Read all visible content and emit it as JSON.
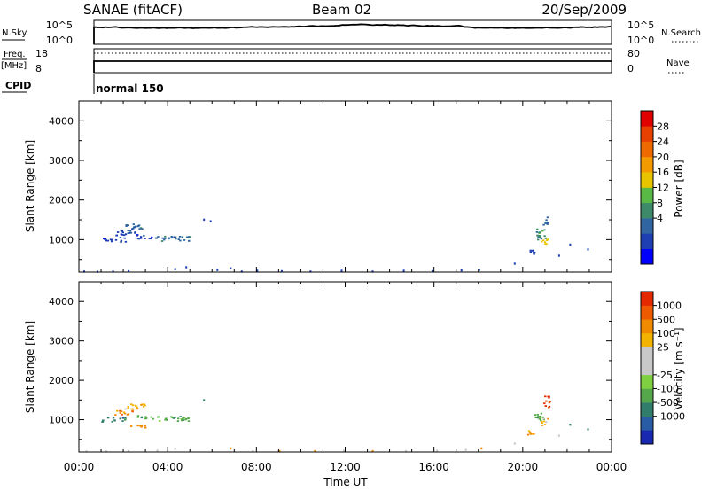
{
  "header": {
    "site": "SANAE (fitACF)",
    "beam": "Beam 02",
    "date": "20/Sep/2009"
  },
  "strips": {
    "nsky": {
      "label": "N.Sky",
      "ticks": [
        "10^5",
        "10^0"
      ]
    },
    "nsearch": {
      "label": "N.Search",
      "ticks": [
        "10^5",
        "10^0"
      ]
    },
    "freq": {
      "label_top": "Freq.",
      "label_unit": "[MHz]",
      "ticks": [
        "18",
        "8"
      ]
    },
    "nave": {
      "label": "Nave",
      "ticks": [
        "80",
        "0"
      ]
    },
    "cpid": {
      "label": "CPID",
      "mode": "normal 150"
    }
  },
  "chart_data": [
    {
      "type": "scatter",
      "title": "Power",
      "xlabel": "Time UT",
      "ylabel": "Slant Range [km]",
      "xlim": [
        0,
        24
      ],
      "ylim": [
        180,
        4500
      ],
      "x_ticks": [
        "00:00",
        "04:00",
        "08:00",
        "12:00",
        "16:00",
        "20:00",
        "00:00"
      ],
      "y_ticks": [
        "1000",
        "2000",
        "3000",
        "4000"
      ],
      "colorbar": {
        "label": "Power [dB]",
        "ticks": [
          "28",
          "24",
          "20",
          "16",
          "12",
          "8",
          "4"
        ],
        "colors": [
          "#0000ff",
          "#1e3fb4",
          "#2f65a0",
          "#3d8a6a",
          "#58b944",
          "#e8c400",
          "#f29a00",
          "#ee6a00",
          "#e84000",
          "#e00000"
        ]
      },
      "clusters": [
        {
          "x0": 1.0,
          "x1": 2.1,
          "y0": 960,
          "y1": 1080,
          "level": 1
        },
        {
          "x0": 1.5,
          "x1": 2.6,
          "y0": 1120,
          "y1": 1260,
          "level": 1
        },
        {
          "x0": 2.0,
          "x1": 3.0,
          "y0": 1280,
          "y1": 1420,
          "level": 2
        },
        {
          "x0": 2.6,
          "x1": 3.6,
          "y0": 1040,
          "y1": 1120,
          "level": 1
        },
        {
          "x0": 3.4,
          "x1": 5.0,
          "y0": 980,
          "y1": 1100,
          "level": 2
        },
        {
          "x0": 20.3,
          "x1": 20.5,
          "y0": 640,
          "y1": 760,
          "level": 1
        },
        {
          "x0": 20.5,
          "x1": 21.0,
          "y0": 1000,
          "y1": 1300,
          "level": 3
        },
        {
          "x0": 20.8,
          "x1": 21.1,
          "y0": 850,
          "y1": 1050,
          "level": 5
        },
        {
          "x0": 20.9,
          "x1": 21.1,
          "y0": 1350,
          "y1": 1600,
          "level": 2
        }
      ],
      "sparse_points": [
        {
          "x": 0.2,
          "y": 220,
          "level": 1
        },
        {
          "x": 0.8,
          "y": 215,
          "level": 1
        },
        {
          "x": 1.5,
          "y": 220,
          "level": 1
        },
        {
          "x": 2.2,
          "y": 230,
          "level": 1
        },
        {
          "x": 4.3,
          "y": 280,
          "level": 1
        },
        {
          "x": 4.8,
          "y": 330,
          "level": 1
        },
        {
          "x": 5.6,
          "y": 1530,
          "level": 1
        },
        {
          "x": 5.9,
          "y": 1490,
          "level": 1
        },
        {
          "x": 6.2,
          "y": 260,
          "level": 1
        },
        {
          "x": 6.8,
          "y": 300,
          "level": 1
        },
        {
          "x": 7.3,
          "y": 220,
          "level": 1
        },
        {
          "x": 8.0,
          "y": 240,
          "level": 1
        },
        {
          "x": 9.1,
          "y": 230,
          "level": 1
        },
        {
          "x": 10.4,
          "y": 220,
          "level": 1
        },
        {
          "x": 11.8,
          "y": 240,
          "level": 1
        },
        {
          "x": 13.2,
          "y": 220,
          "level": 1
        },
        {
          "x": 14.6,
          "y": 240,
          "level": 1
        },
        {
          "x": 15.9,
          "y": 230,
          "level": 1
        },
        {
          "x": 17.2,
          "y": 250,
          "level": 1
        },
        {
          "x": 18.0,
          "y": 260,
          "level": 1
        },
        {
          "x": 19.6,
          "y": 420,
          "level": 1
        },
        {
          "x": 21.6,
          "y": 620,
          "level": 1
        },
        {
          "x": 22.1,
          "y": 900,
          "level": 1
        },
        {
          "x": 22.9,
          "y": 780,
          "level": 1
        }
      ]
    },
    {
      "type": "scatter",
      "title": "Velocity",
      "xlabel": "Time UT",
      "ylabel": "Slant Range [km]",
      "xlim": [
        0,
        24
      ],
      "ylim": [
        180,
        4500
      ],
      "x_ticks": [
        "00:00",
        "04:00",
        "08:00",
        "12:00",
        "16:00",
        "20:00",
        "00:00"
      ],
      "y_ticks": [
        "1000",
        "2000",
        "3000",
        "4000"
      ],
      "colorbar": {
        "label": "Velocity [m s⁻¹]",
        "ticks": [
          "1000",
          "500",
          "100",
          "25",
          "-25",
          "-100",
          "-500",
          "-1000"
        ],
        "colors": [
          "#1828b0",
          "#285ca4",
          "#2f7d6a",
          "#55a84a",
          "#7ed040",
          "#c8c8c8",
          "#c8c8c8",
          "#f2b400",
          "#f08a00",
          "#ee5a00",
          "#e42800"
        ]
      },
      "clusters": [
        {
          "x0": 1.0,
          "x1": 2.1,
          "y0": 960,
          "y1": 1080,
          "level": 2
        },
        {
          "x0": 1.5,
          "x1": 2.4,
          "y0": 1140,
          "y1": 1250,
          "level": 8
        },
        {
          "x0": 2.0,
          "x1": 3.0,
          "y0": 1280,
          "y1": 1420,
          "level": 7
        },
        {
          "x0": 2.3,
          "x1": 3.0,
          "y0": 800,
          "y1": 900,
          "level": 8
        },
        {
          "x0": 2.6,
          "x1": 3.6,
          "y0": 1040,
          "y1": 1120,
          "level": 3
        },
        {
          "x0": 3.4,
          "x1": 5.0,
          "y0": 980,
          "y1": 1100,
          "level": 3
        },
        {
          "x0": 20.2,
          "x1": 20.5,
          "y0": 620,
          "y1": 760,
          "level": 8
        },
        {
          "x0": 20.5,
          "x1": 21.0,
          "y0": 1000,
          "y1": 1200,
          "level": 3
        },
        {
          "x0": 20.8,
          "x1": 21.1,
          "y0": 860,
          "y1": 1050,
          "level": 7
        },
        {
          "x0": 20.9,
          "x1": 21.2,
          "y0": 1300,
          "y1": 1620,
          "level": 10
        }
      ],
      "sparse_points": [
        {
          "x": 0.3,
          "y": 220,
          "level": 5
        },
        {
          "x": 1.2,
          "y": 220,
          "level": 5
        },
        {
          "x": 2.2,
          "y": 230,
          "level": 5
        },
        {
          "x": 3.5,
          "y": 240,
          "level": 5
        },
        {
          "x": 4.3,
          "y": 290,
          "level": 6
        },
        {
          "x": 5.6,
          "y": 1520,
          "level": 2
        },
        {
          "x": 6.8,
          "y": 300,
          "level": 8
        },
        {
          "x": 7.8,
          "y": 230,
          "level": 6
        },
        {
          "x": 9.0,
          "y": 230,
          "level": 8
        },
        {
          "x": 10.6,
          "y": 230,
          "level": 8
        },
        {
          "x": 11.9,
          "y": 240,
          "level": 6
        },
        {
          "x": 13.2,
          "y": 230,
          "level": 8
        },
        {
          "x": 14.7,
          "y": 230,
          "level": 6
        },
        {
          "x": 16.1,
          "y": 240,
          "level": 6
        },
        {
          "x": 17.4,
          "y": 260,
          "level": 6
        },
        {
          "x": 18.1,
          "y": 300,
          "level": 8
        },
        {
          "x": 19.6,
          "y": 420,
          "level": 6
        },
        {
          "x": 21.6,
          "y": 620,
          "level": 6
        },
        {
          "x": 22.1,
          "y": 900,
          "level": 2
        },
        {
          "x": 22.9,
          "y": 780,
          "level": 2
        }
      ]
    }
  ]
}
